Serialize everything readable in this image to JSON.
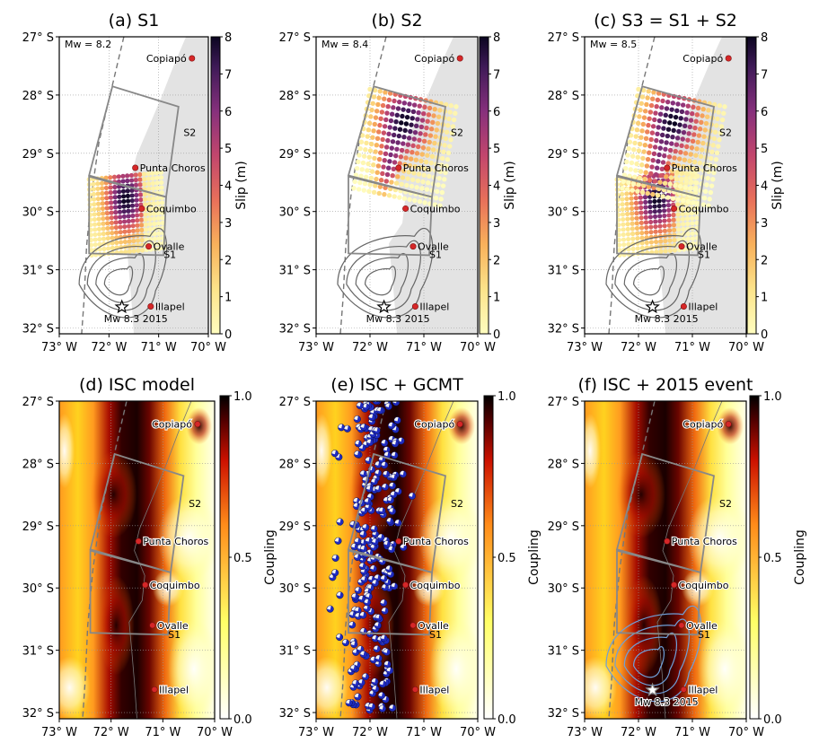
{
  "figure": {
    "shared": {
      "x_ticks": [
        "73° W",
        "72° W",
        "71° W",
        "70° W"
      ],
      "y_ticks": [
        "27° S",
        "28° S",
        "29° S",
        "30° S",
        "31° S",
        "32° S"
      ],
      "xlim": [
        -73,
        -70
      ],
      "ylim": [
        -32.1,
        -27
      ]
    },
    "cities": [
      {
        "name": "Copiapó",
        "lon": -70.33,
        "lat": -27.37
      },
      {
        "name": "Punta Choros",
        "lon": -71.47,
        "lat": -29.25
      },
      {
        "name": "Coquimbo",
        "lon": -71.34,
        "lat": -29.95
      },
      {
        "name": "Ovalle",
        "lon": -71.2,
        "lat": -30.6
      },
      {
        "name": "Illapel",
        "lon": -71.16,
        "lat": -31.63
      }
    ],
    "segment_labels": [
      {
        "text": "S2",
        "lon": -70.5,
        "lat": -28.7
      },
      {
        "text": "S1",
        "lon": -70.9,
        "lat": -30.8
      }
    ],
    "epicenter": {
      "label": "Mw 8.3 2015",
      "lon": -71.74,
      "lat": -31.64
    },
    "colors": {
      "ocean": "#ffffff",
      "land": "#e3e3e3",
      "fault": "#888888",
      "city": "#d62728",
      "grid": "#9a9a9a"
    }
  },
  "chart_data": [
    {
      "type": "scatter",
      "panel": "a",
      "title": "(a) S1",
      "mw_label": "Mw = 8.2",
      "colorbar": {
        "label": "Slip (m)",
        "ticks": [
          "0",
          "1",
          "2",
          "3",
          "4",
          "5",
          "6",
          "7",
          "8"
        ],
        "range": [
          0,
          8
        ]
      }
    },
    {
      "type": "scatter",
      "panel": "b",
      "title": "(b) S2",
      "mw_label": "Mw = 8.4",
      "colorbar": {
        "label": "Slip (m)",
        "ticks": [
          "0",
          "1",
          "2",
          "3",
          "4",
          "5",
          "6",
          "7",
          "8"
        ],
        "range": [
          0,
          8
        ]
      }
    },
    {
      "type": "scatter",
      "panel": "c",
      "title": "(c) S3 = S1 + S2",
      "mw_label": "Mw = 8.5",
      "colorbar": {
        "label": "Slip (m)",
        "ticks": [
          "0",
          "1",
          "2",
          "3",
          "4",
          "5",
          "6",
          "7",
          "8"
        ],
        "range": [
          0,
          8
        ]
      }
    },
    {
      "type": "heatmap",
      "panel": "d",
      "title": "(d) ISC model",
      "colorbar": {
        "label": "Coupling",
        "ticks": [
          "0.0",
          "0.5",
          "1.0"
        ],
        "range": [
          0,
          1
        ]
      }
    },
    {
      "type": "heatmap",
      "panel": "e",
      "title": "(e) ISC + GCMT",
      "colorbar": {
        "label": "Coupling",
        "ticks": [
          "0.0",
          "0.5",
          "1.0"
        ],
        "range": [
          0,
          1
        ]
      }
    },
    {
      "type": "heatmap",
      "panel": "f",
      "title": "(f) ISC + 2015 event",
      "colorbar": {
        "label": "Coupling",
        "ticks": [
          "0.0",
          "0.5",
          "1.0"
        ],
        "range": [
          0,
          1
        ]
      }
    }
  ]
}
